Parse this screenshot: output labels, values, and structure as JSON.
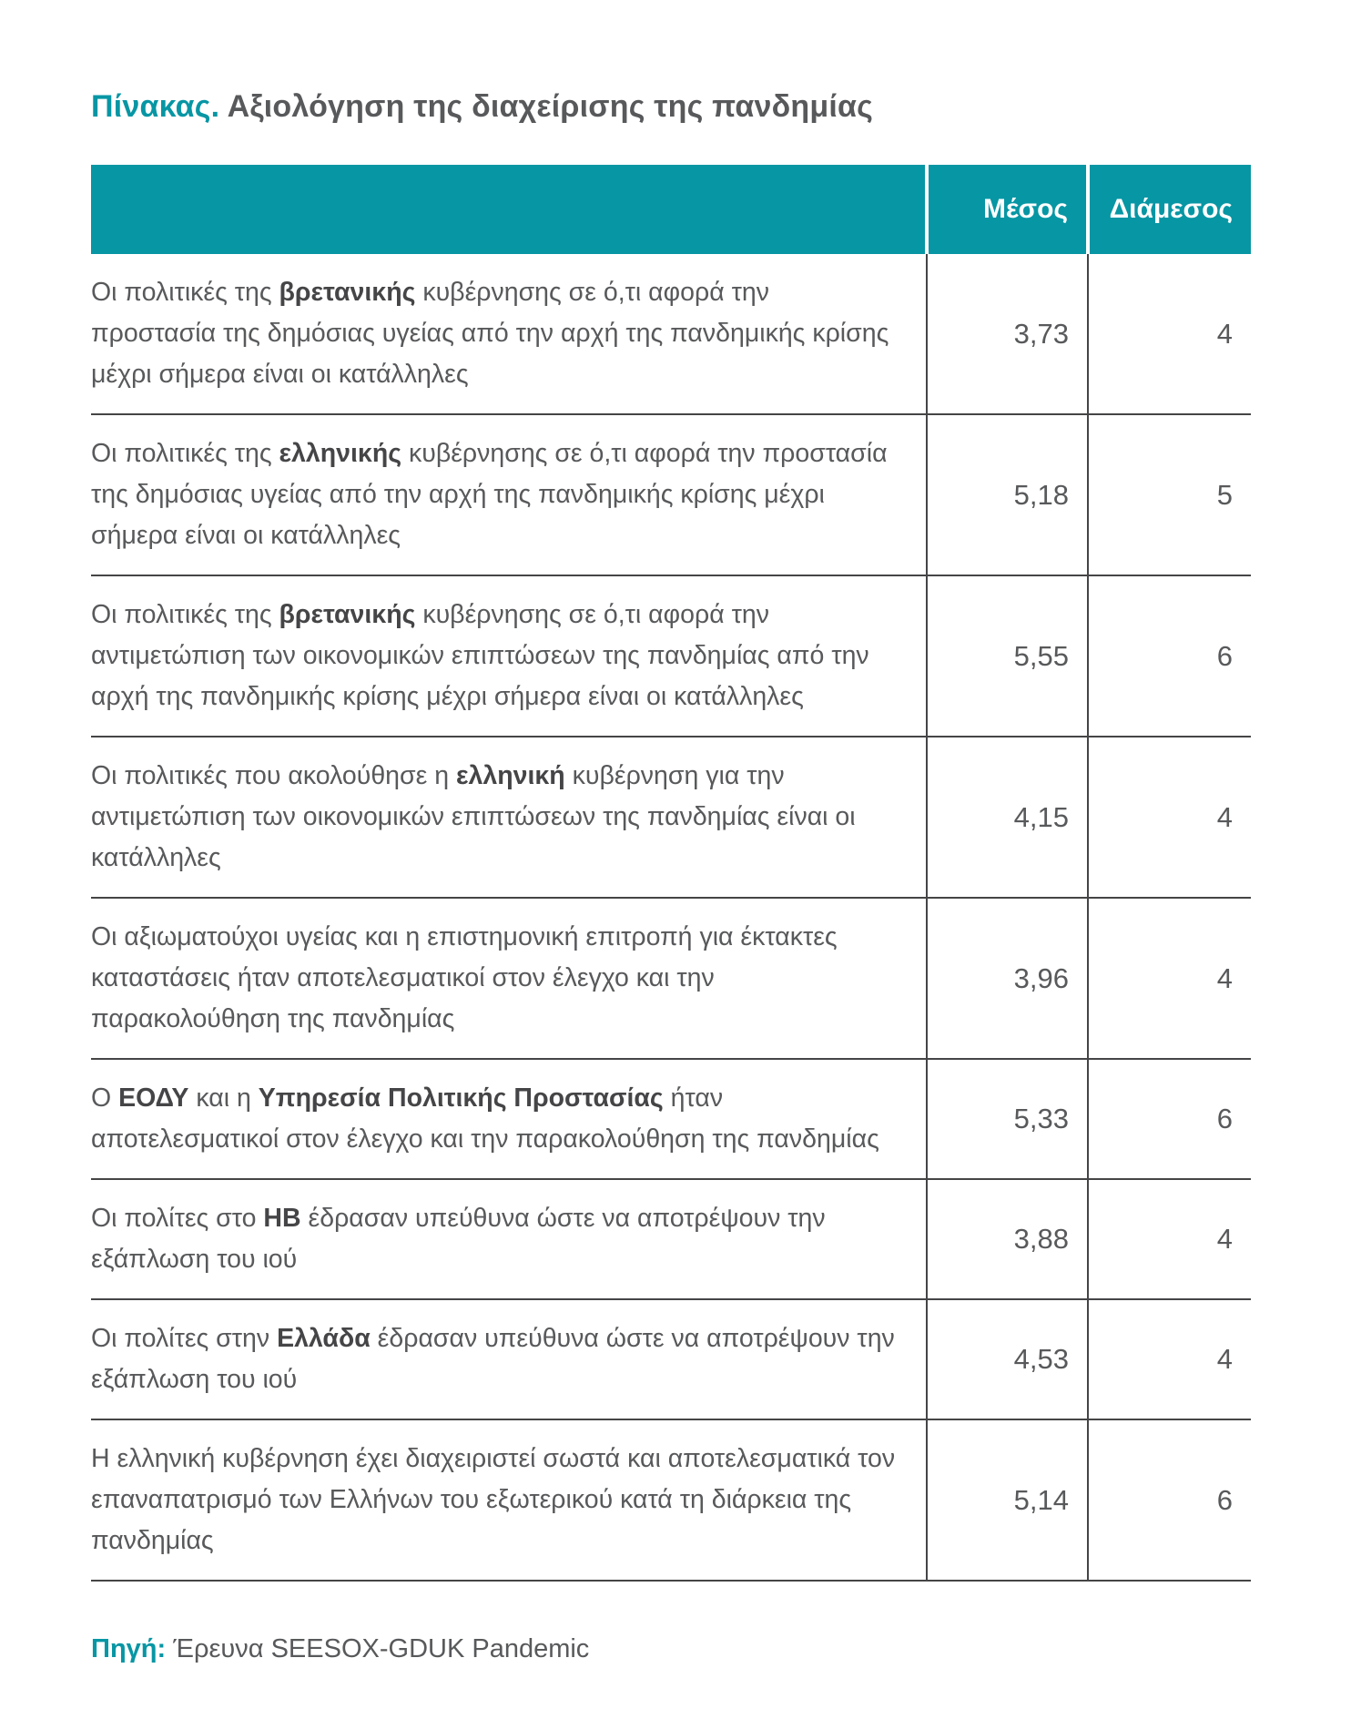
{
  "title": {
    "label": "Πίνακας.",
    "text": "Αξιολόγηση της διαχείρισης της πανδημίας"
  },
  "table": {
    "columns": [
      "Μέσος",
      "Διάμεσος"
    ],
    "rows": [
      {
        "segments": [
          {
            "text": "Οι πολιτικές της ",
            "bold": false
          },
          {
            "text": "βρετανικής",
            "bold": true
          },
          {
            "text": " κυβέρνησης σε ό,τι αφορά την προστασία της δημόσιας υγείας από την αρχή της πανδημικής κρίσης μέχρι σήμερα είναι οι κατάλληλες",
            "bold": false
          }
        ],
        "mean": "3,73",
        "median": "4"
      },
      {
        "segments": [
          {
            "text": "Οι πολιτικές της ",
            "bold": false
          },
          {
            "text": "ελληνικής",
            "bold": true
          },
          {
            "text": " κυβέρνησης σε ό,τι αφορά την προστασία της δημόσιας υγείας από την αρχή της πανδημικής κρίσης μέχρι σήμερα είναι οι κατάλληλες",
            "bold": false
          }
        ],
        "mean": "5,18",
        "median": "5"
      },
      {
        "segments": [
          {
            "text": "Οι πολιτικές  της ",
            "bold": false
          },
          {
            "text": "βρετανικής",
            "bold": true
          },
          {
            "text": " κυβέρνησης σε ό,τι αφορά την αντιμετώπιση των οικονομικών επιπτώσεων της πανδημίας από την αρχή της πανδημικής κρίσης μέχρι σήμερα είναι οι κατάλληλες",
            "bold": false
          }
        ],
        "mean": "5,55",
        "median": "6"
      },
      {
        "segments": [
          {
            "text": "Οι πολιτικές που ακολούθησε η ",
            "bold": false
          },
          {
            "text": "ελληνική",
            "bold": true
          },
          {
            "text": " κυβέρνηση για την αντιμετώπιση των οικονομικών επιπτώσεων της πανδημίας είναι οι κατάλληλες",
            "bold": false
          }
        ],
        "mean": "4,15",
        "median": "4"
      },
      {
        "segments": [
          {
            "text": "Οι αξιωματούχοι υγείας και η επιστημονική επιτροπή για έκτακτες καταστάσεις ήταν αποτελεσματικοί στον έλεγχο και την παρακολούθηση της πανδημίας",
            "bold": false
          }
        ],
        "mean": "3,96",
        "median": "4"
      },
      {
        "segments": [
          {
            "text": "Ο ",
            "bold": false
          },
          {
            "text": "ΕΟΔΥ",
            "bold": true
          },
          {
            "text": " και η ",
            "bold": false
          },
          {
            "text": "Υπηρεσία Πολιτικής Προστασίας",
            "bold": true
          },
          {
            "text": " ήταν αποτελεσματικοί στον έλεγχο και την παρακολούθηση της πανδημίας",
            "bold": false
          }
        ],
        "mean": "5,33",
        "median": "6"
      },
      {
        "segments": [
          {
            "text": "Οι πολίτες στο ",
            "bold": false
          },
          {
            "text": "ΗΒ",
            "bold": true
          },
          {
            "text": " έδρασαν υπεύθυνα ώστε να αποτρέψουν την εξάπλωση του ιού",
            "bold": false
          }
        ],
        "mean": "3,88",
        "median": "4"
      },
      {
        "segments": [
          {
            "text": "Οι πολίτες στην ",
            "bold": false
          },
          {
            "text": "Ελλάδα",
            "bold": true
          },
          {
            "text": " έδρασαν υπεύθυνα ώστε να αποτρέψουν την εξάπλωση του ιού",
            "bold": false
          }
        ],
        "mean": "4,53",
        "median": "4"
      },
      {
        "segments": [
          {
            "text": "Η ελληνική κυβέρνηση έχει διαχειριστεί σωστά και αποτελεσματικά τον επαναπατρισμό των Ελλήνων του εξωτερικού κατά τη διάρκεια της πανδημίας",
            "bold": false
          }
        ],
        "mean": "5,14",
        "median": "6"
      }
    ]
  },
  "source": {
    "label": "Πηγή:",
    "text": "Έρευνα SEESOX-GDUK Pandemic"
  },
  "colors": {
    "accent": "#0796A4",
    "text": "#58595B",
    "border": "#454547",
    "header_text": "#FFFFFF"
  }
}
